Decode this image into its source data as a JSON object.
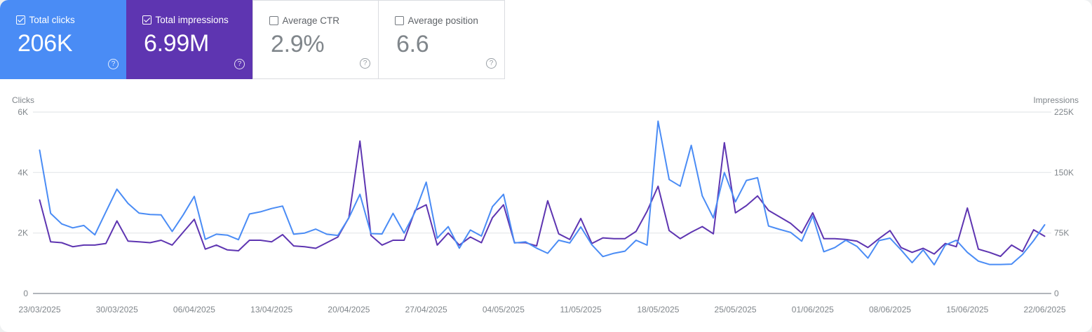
{
  "page": {
    "outer_background": "#eef0f1",
    "surface_background": "#ffffff"
  },
  "metric_cards": [
    {
      "id": "total-clicks",
      "label": "Total clicks",
      "value": "206K",
      "checked": true,
      "background": "#4a8cf5",
      "help_icon": "?"
    },
    {
      "id": "total-impressions",
      "label": "Total impressions",
      "value": "6.99M",
      "checked": true,
      "background": "#5e35b1",
      "help_icon": "?"
    },
    {
      "id": "average-ctr",
      "label": "Average CTR",
      "value": "2.9%",
      "checked": false,
      "background": "#ffffff",
      "help_icon": "?"
    },
    {
      "id": "average-position",
      "label": "Average position",
      "value": "6.6",
      "checked": false,
      "background": "#ffffff",
      "help_icon": "?"
    }
  ],
  "chart_data": {
    "type": "line",
    "title": "",
    "grid": true,
    "legend_position": "none",
    "x_tick_labels": [
      "23/03/2025",
      "30/03/2025",
      "06/04/2025",
      "13/04/2025",
      "20/04/2025",
      "27/04/2025",
      "04/05/2025",
      "11/05/2025",
      "18/05/2025",
      "25/05/2025",
      "01/06/2025",
      "08/06/2025",
      "15/06/2025",
      "22/06/2025"
    ],
    "x_tick_day_indices": [
      0,
      7,
      14,
      21,
      28,
      35,
      42,
      49,
      56,
      63,
      70,
      77,
      84,
      91
    ],
    "days_total": 92,
    "left_axis": {
      "title": "Clicks",
      "ticks": [
        "0",
        "2K",
        "4K",
        "6K"
      ],
      "range": [
        0,
        6000
      ]
    },
    "right_axis": {
      "title": "Impressions",
      "ticks": [
        "0",
        "75K",
        "150K",
        "225K"
      ],
      "range": [
        0,
        225000
      ]
    },
    "series": [
      {
        "name": "Total clicks",
        "axis": "left",
        "color": "#4a8cf5",
        "values": [
          4740,
          2650,
          2300,
          2170,
          2250,
          1940,
          2700,
          3450,
          2980,
          2660,
          2610,
          2600,
          2050,
          2600,
          3210,
          1790,
          1960,
          1930,
          1780,
          2630,
          2700,
          2810,
          2890,
          1960,
          2000,
          2130,
          1960,
          1920,
          2500,
          3280,
          1980,
          1970,
          2650,
          2000,
          2700,
          3680,
          1830,
          2210,
          1500,
          2100,
          1900,
          2870,
          3280,
          1670,
          1710,
          1500,
          1330,
          1760,
          1670,
          2200,
          1610,
          1220,
          1330,
          1400,
          1760,
          1600,
          5700,
          3770,
          3550,
          4900,
          3230,
          2500,
          4000,
          3030,
          3740,
          3830,
          2230,
          2120,
          2020,
          1730,
          2560,
          1380,
          1520,
          1760,
          1560,
          1170,
          1750,
          1830,
          1440,
          1020,
          1440,
          950,
          1600,
          1760,
          1360,
          1070,
          960,
          960,
          970,
          1290,
          1750,
          2270
        ]
      },
      {
        "name": "Total impressions",
        "axis": "right",
        "color": "#5e35b1",
        "values": [
          116000,
          64000,
          63000,
          58000,
          60000,
          60000,
          62000,
          90000,
          65000,
          64000,
          63000,
          66000,
          60000,
          76000,
          92000,
          55000,
          60000,
          54000,
          53000,
          66000,
          66000,
          64000,
          73000,
          59000,
          58000,
          56000,
          63000,
          70000,
          94000,
          189000,
          72000,
          60000,
          66000,
          66000,
          103000,
          110000,
          60000,
          75000,
          60000,
          70000,
          63000,
          94000,
          110000,
          63000,
          63000,
          59000,
          115000,
          74000,
          67000,
          93000,
          62000,
          69000,
          68000,
          68000,
          77000,
          102000,
          133000,
          78000,
          68000,
          76000,
          83000,
          74000,
          187000,
          100000,
          109000,
          121000,
          103000,
          95000,
          87000,
          75000,
          100000,
          68000,
          68000,
          67000,
          65000,
          57000,
          68000,
          78000,
          57000,
          51000,
          56000,
          49000,
          62000,
          58000,
          106000,
          55000,
          51000,
          46000,
          60000,
          52000,
          79000,
          71000
        ]
      }
    ]
  }
}
